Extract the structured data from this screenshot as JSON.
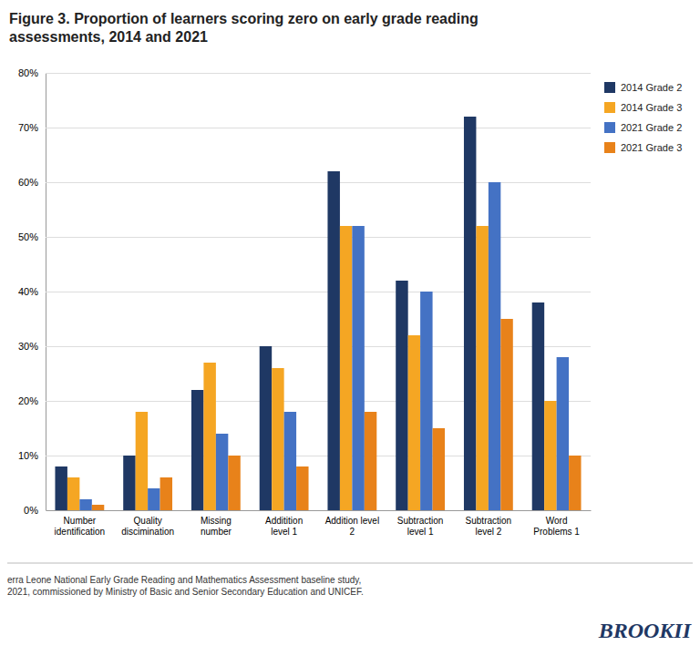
{
  "chart_data": {
    "type": "bar",
    "title": "Figure 3. Proportion of learners scoring zero on early grade reading\nassessments, 2014 and 2021",
    "categories": [
      "Number\nidentification",
      "Quality\ndiscimination",
      "Missing\nnumber",
      "Additition\nlevel 1",
      "Addition level\n2",
      "Subtraction\nlevel 1",
      "Subtraction\nlevel 2",
      "Word\nProblems 1"
    ],
    "series": [
      {
        "name": "2014 Grade 2",
        "color": "#1F3864",
        "values": [
          0.08,
          0.1,
          0.22,
          0.3,
          0.62,
          0.42,
          0.72,
          0.38
        ]
      },
      {
        "name": "2014 Grade 3",
        "color": "#F5A623",
        "values": [
          0.06,
          0.18,
          0.27,
          0.26,
          0.52,
          0.32,
          0.52,
          0.2
        ]
      },
      {
        "name": "2021 Grade 2",
        "color": "#4472C4",
        "values": [
          0.02,
          0.04,
          0.14,
          0.18,
          0.52,
          0.4,
          0.6,
          0.28
        ]
      },
      {
        "name": "2021 Grade 3",
        "color": "#E8821A",
        "values": [
          0.01,
          0.06,
          0.1,
          0.08,
          0.18,
          0.15,
          0.35,
          0.1
        ]
      }
    ],
    "ylim": [
      0,
      0.8
    ],
    "yticks": [
      {
        "value": 0,
        "label": "0%"
      },
      {
        "value": 0.1,
        "label": "10%"
      },
      {
        "value": 0.2,
        "label": "20%"
      },
      {
        "value": 0.3,
        "label": "30%"
      },
      {
        "value": 0.4,
        "label": "40%"
      },
      {
        "value": 0.5,
        "label": "50%"
      },
      {
        "value": 0.6,
        "label": "60%"
      },
      {
        "value": 0.7,
        "label": "70%"
      },
      {
        "value": 0.8,
        "label": "80%"
      }
    ],
    "grid": true,
    "legend": "right",
    "annotations": [
      "erra Leone National Early Grade Reading and Mathematics Assessment baseline study,\n2021, commissioned by Ministry of Basic and Senior Secondary Education and UNICEF.",
      "BROOKII"
    ]
  }
}
